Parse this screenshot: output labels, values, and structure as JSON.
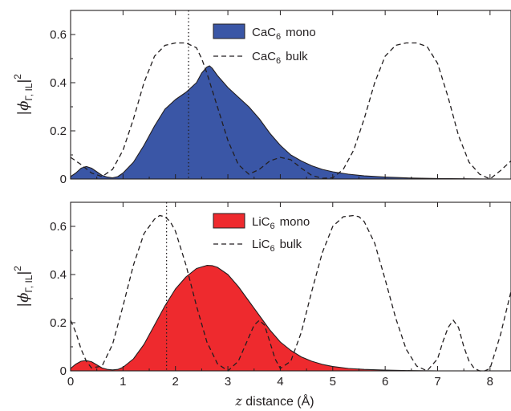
{
  "chart_data": [
    {
      "type": "area",
      "panel": "top",
      "xlim": [
        0,
        8.4
      ],
      "ylim": [
        0,
        0.7
      ],
      "xticks": [
        0,
        1,
        2,
        3,
        4,
        5,
        6,
        7,
        8
      ],
      "yticks": [
        0,
        0.2,
        0.4,
        0.6
      ],
      "ytick_labels": [
        "0",
        "0.2",
        "0.4",
        "0.6"
      ],
      "ylabel": {
        "main": "|ϕ",
        "sub": "Γ, IL",
        "close": "|",
        "sup": "2"
      },
      "xlabel": "",
      "grid": false,
      "legend_position": "top-center",
      "vertical_marker_x": 2.25,
      "series": [
        {
          "name": "CaC6 mono",
          "legend": {
            "base": "CaC",
            "sub": "6",
            "rest": "mono"
          },
          "style": "filled",
          "color": "#3a56a6",
          "x": [
            0,
            0.1,
            0.2,
            0.3,
            0.4,
            0.5,
            0.6,
            0.7,
            0.8,
            0.9,
            1.0,
            1.2,
            1.4,
            1.6,
            1.8,
            2.0,
            2.2,
            2.4,
            2.5,
            2.6,
            2.65,
            2.7,
            2.8,
            3.0,
            3.2,
            3.4,
            3.6,
            3.8,
            4.0,
            4.2,
            4.4,
            4.6,
            4.8,
            5.0,
            5.3,
            5.6,
            6.0,
            6.5,
            7.0,
            7.5,
            8.0,
            8.4
          ],
          "y": [
            0.01,
            0.025,
            0.045,
            0.052,
            0.045,
            0.03,
            0.015,
            0.008,
            0.005,
            0.01,
            0.025,
            0.07,
            0.14,
            0.22,
            0.29,
            0.33,
            0.36,
            0.4,
            0.44,
            0.465,
            0.47,
            0.46,
            0.43,
            0.38,
            0.34,
            0.3,
            0.25,
            0.19,
            0.14,
            0.1,
            0.075,
            0.055,
            0.04,
            0.03,
            0.02,
            0.013,
            0.008,
            0.004,
            0.002,
            0.001,
            0.0,
            0.0
          ]
        },
        {
          "name": "CaC6 bulk",
          "legend": {
            "base": "CaC",
            "sub": "6",
            "rest": "bulk"
          },
          "style": "dashed",
          "color": "#231f20",
          "x": [
            0,
            0.2,
            0.4,
            0.6,
            0.8,
            1.0,
            1.2,
            1.4,
            1.6,
            1.8,
            2.0,
            2.2,
            2.4,
            2.5,
            2.6,
            2.8,
            3.0,
            3.2,
            3.4,
            3.6,
            3.8,
            4.0,
            4.2,
            4.4,
            4.6,
            4.8,
            5.0,
            5.2,
            5.4,
            5.6,
            5.8,
            6.0,
            6.2,
            6.4,
            6.6,
            6.8,
            7.0,
            7.2,
            7.4,
            7.6,
            7.8,
            8.0,
            8.2,
            8.4
          ],
          "y": [
            0.09,
            0.06,
            0.025,
            0.01,
            0.04,
            0.12,
            0.25,
            0.4,
            0.51,
            0.555,
            0.565,
            0.565,
            0.545,
            0.5,
            0.44,
            0.3,
            0.16,
            0.06,
            0.02,
            0.04,
            0.075,
            0.09,
            0.08,
            0.045,
            0.015,
            0.003,
            0.005,
            0.04,
            0.12,
            0.25,
            0.4,
            0.51,
            0.555,
            0.565,
            0.565,
            0.55,
            0.48,
            0.34,
            0.18,
            0.07,
            0.02,
            0.0,
            0.035,
            0.075
          ]
        }
      ]
    },
    {
      "type": "area",
      "panel": "bottom",
      "xlim": [
        0,
        8.4
      ],
      "ylim": [
        0,
        0.7
      ],
      "xticks": [
        0,
        1,
        2,
        3,
        4,
        5,
        6,
        7,
        8
      ],
      "xtick_labels": [
        "0",
        "1",
        "2",
        "3",
        "4",
        "5",
        "6",
        "7",
        "8"
      ],
      "yticks": [
        0,
        0.2,
        0.4,
        0.6
      ],
      "ytick_labels": [
        "0",
        "0.2",
        "0.4",
        "0.6"
      ],
      "ylabel": {
        "main": "|ϕ",
        "sub": "Γ, IL",
        "close": "|",
        "sup": "2"
      },
      "xlabel": {
        "var": "z",
        "rest": " distance (Å)"
      },
      "grid": false,
      "legend_position": "top-center",
      "vertical_marker_x": 1.83,
      "series": [
        {
          "name": "LiC6 mono",
          "legend": {
            "base": "LiC",
            "sub": "6",
            "rest": "mono"
          },
          "style": "filled",
          "color": "#ee2a2e",
          "x": [
            0,
            0.1,
            0.2,
            0.3,
            0.4,
            0.5,
            0.6,
            0.7,
            0.8,
            0.9,
            1.0,
            1.2,
            1.4,
            1.6,
            1.8,
            2.0,
            2.2,
            2.4,
            2.6,
            2.7,
            2.8,
            3.0,
            3.2,
            3.4,
            3.6,
            3.8,
            4.0,
            4.2,
            4.4,
            4.6,
            4.8,
            5.0,
            5.3,
            5.6,
            6.0,
            6.5,
            7.0,
            7.5,
            8.0,
            8.4
          ],
          "y": [
            0.01,
            0.028,
            0.04,
            0.043,
            0.038,
            0.025,
            0.012,
            0.006,
            0.004,
            0.006,
            0.015,
            0.05,
            0.11,
            0.19,
            0.27,
            0.34,
            0.39,
            0.425,
            0.438,
            0.437,
            0.43,
            0.4,
            0.35,
            0.29,
            0.23,
            0.17,
            0.12,
            0.085,
            0.058,
            0.04,
            0.027,
            0.018,
            0.01,
            0.006,
            0.003,
            0.001,
            0.0,
            0.0,
            0.0,
            0.0
          ]
        },
        {
          "name": "LiC6 bulk",
          "legend": {
            "base": "LiC",
            "sub": "6",
            "rest": "bulk"
          },
          "style": "dashed",
          "color": "#231f20",
          "x": [
            0,
            0.1,
            0.2,
            0.3,
            0.4,
            0.6,
            0.8,
            1.0,
            1.2,
            1.4,
            1.6,
            1.7,
            1.8,
            1.9,
            2.0,
            2.2,
            2.4,
            2.6,
            2.8,
            3.0,
            3.2,
            3.4,
            3.5,
            3.6,
            3.7,
            3.8,
            3.9,
            4.0,
            4.2,
            4.4,
            4.6,
            4.8,
            5.0,
            5.2,
            5.4,
            5.5,
            5.6,
            5.8,
            6.0,
            6.2,
            6.4,
            6.6,
            6.8,
            7.0,
            7.1,
            7.2,
            7.3,
            7.4,
            7.5,
            7.6,
            7.7,
            7.8,
            7.9,
            8.0,
            8.2,
            8.4
          ],
          "y": [
            0.21,
            0.16,
            0.09,
            0.04,
            0.012,
            0.02,
            0.11,
            0.27,
            0.44,
            0.57,
            0.63,
            0.645,
            0.64,
            0.62,
            0.58,
            0.44,
            0.27,
            0.12,
            0.03,
            0.0,
            0.04,
            0.14,
            0.19,
            0.21,
            0.19,
            0.12,
            0.05,
            0.01,
            0.04,
            0.16,
            0.33,
            0.49,
            0.6,
            0.64,
            0.645,
            0.64,
            0.62,
            0.53,
            0.38,
            0.22,
            0.09,
            0.02,
            0.0,
            0.05,
            0.12,
            0.18,
            0.21,
            0.18,
            0.1,
            0.04,
            0.01,
            0.0,
            0.0,
            0.01,
            0.15,
            0.33
          ]
        }
      ]
    }
  ]
}
